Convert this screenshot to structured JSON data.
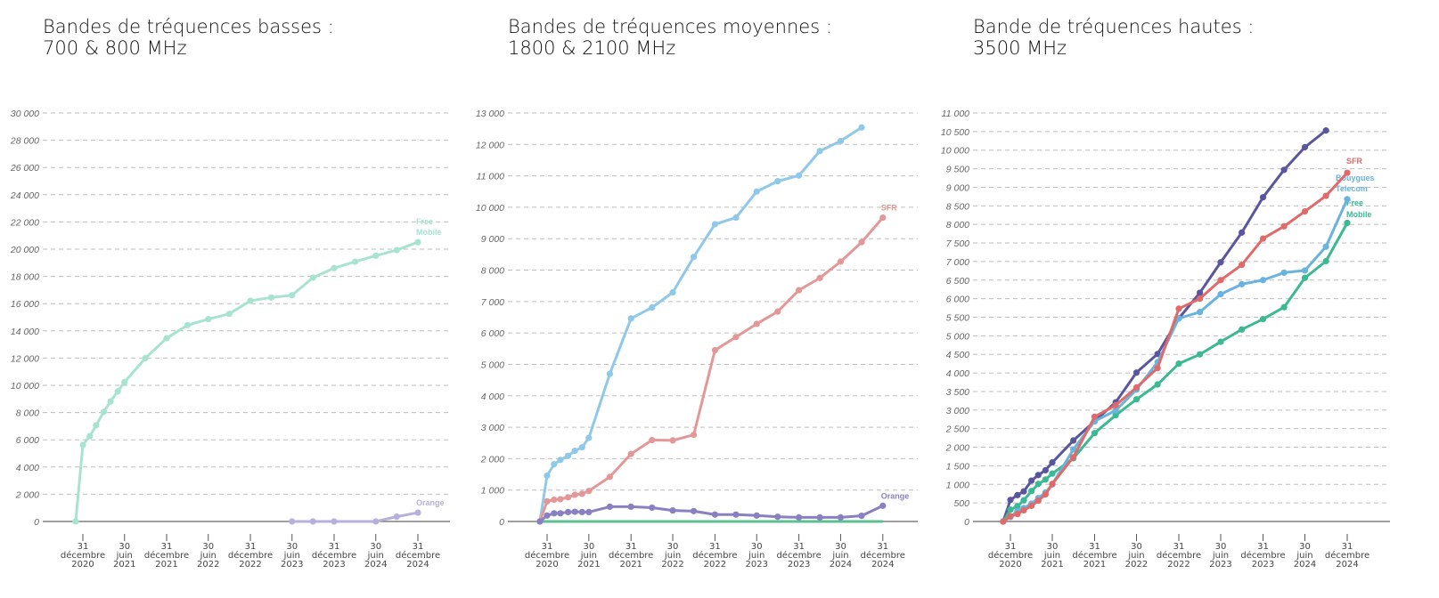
{
  "colors": {
    "free_light": "#a6e3d0",
    "orange_light": "#b7b0db",
    "bouygues_mid": "#8fc8e8",
    "sfr_mid": "#e49797",
    "orange_mid": "#8880c0",
    "free_mid": "#5bbf8f",
    "orange_dark": "#5a559f",
    "sfr_dark": "#e06a6a",
    "bouygues_dark": "#69b3df",
    "free_dark": "#3bb993",
    "grid": "#bdbdbd",
    "axis": "#666666"
  },
  "x_dates": [
    "2020-11-30",
    "2020-12-31",
    "2021-01-31",
    "2021-02-28",
    "2021-03-31",
    "2021-04-30",
    "2021-05-31",
    "2021-06-30",
    "2021-09-30",
    "2021-12-31",
    "2022-03-31",
    "2022-06-30",
    "2022-09-30",
    "2022-12-31",
    "2023-03-31",
    "2023-06-30",
    "2023-09-30",
    "2023-12-31",
    "2024-03-31",
    "2024-06-30",
    "2024-09-30",
    "2024-12-31"
  ],
  "x_ticks": [
    {
      "date": "2020-12-31",
      "lines": [
        "31",
        "décembre",
        "2020"
      ]
    },
    {
      "date": "2021-06-30",
      "lines": [
        "30",
        "juin",
        "2021"
      ]
    },
    {
      "date": "2021-12-31",
      "lines": [
        "31",
        "décembre",
        "2021"
      ]
    },
    {
      "date": "2022-06-30",
      "lines": [
        "30",
        "juin",
        "2022"
      ]
    },
    {
      "date": "2022-12-31",
      "lines": [
        "31",
        "décembre",
        "2022"
      ]
    },
    {
      "date": "2023-06-30",
      "lines": [
        "30",
        "juin",
        "2023"
      ]
    },
    {
      "date": "2023-12-31",
      "lines": [
        "31",
        "décembre",
        "2023"
      ]
    },
    {
      "date": "2024-06-30",
      "lines": [
        "30",
        "juin",
        "2024"
      ]
    },
    {
      "date": "2024-12-31",
      "lines": [
        "31",
        "décembre",
        "2024"
      ]
    }
  ],
  "chart_data": [
    {
      "type": "line",
      "title": [
        "Bandes de tréquences basses :",
        "700 & 800 MHz"
      ],
      "ylim": [
        0,
        30000
      ],
      "grid": true,
      "legend": "end-of-line labels",
      "y_ticks": [
        [
          0,
          "0"
        ],
        [
          2000,
          "2 000"
        ],
        [
          4000,
          "4 000"
        ],
        [
          6000,
          "6 000"
        ],
        [
          8000,
          "8 000"
        ],
        [
          10000,
          "10 000"
        ],
        [
          12000,
          "12 000"
        ],
        [
          14000,
          "14 000"
        ],
        [
          16000,
          "16 000"
        ],
        [
          18000,
          "18 000"
        ],
        [
          20000,
          "20 000"
        ],
        [
          22000,
          "22 000"
        ],
        [
          24000,
          "24 000"
        ],
        [
          26000,
          "26 000"
        ],
        [
          28000,
          "28 000"
        ],
        [
          30000,
          "30 000"
        ]
      ],
      "series": [
        {
          "name": "Free Mobile",
          "label_lines": [
            "Free",
            "Mobile"
          ],
          "color": "free_light",
          "markers": true,
          "values": [
            0,
            5620,
            6270,
            7060,
            8060,
            8820,
            9560,
            10240,
            12000,
            13460,
            14420,
            14860,
            15250,
            16210,
            16450,
            16620,
            17910,
            18610,
            19080,
            19520,
            19930,
            20520
          ]
        },
        {
          "name": "Orange",
          "label_lines": [
            "Orange"
          ],
          "color": "orange_light",
          "markers": true,
          "values": [
            null,
            null,
            null,
            null,
            null,
            null,
            null,
            null,
            null,
            null,
            null,
            null,
            null,
            null,
            null,
            0,
            0,
            0,
            null,
            0,
            350,
            650
          ]
        }
      ]
    },
    {
      "type": "line",
      "title": [
        "Bandes de tréquences moyennes :",
        "1800 & 2100 MHz"
      ],
      "ylim": [
        0,
        13000
      ],
      "grid": true,
      "legend": "end-of-line labels",
      "y_ticks": [
        [
          0,
          "0"
        ],
        [
          1000,
          "1 000"
        ],
        [
          2000,
          "2 000"
        ],
        [
          3000,
          "3 000"
        ],
        [
          4000,
          "4 000"
        ],
        [
          5000,
          "5 000"
        ],
        [
          6000,
          "6 000"
        ],
        [
          7000,
          "7 000"
        ],
        [
          8000,
          "8 000"
        ],
        [
          9000,
          "9 000"
        ],
        [
          10000,
          "10 000"
        ],
        [
          11000,
          "11 000"
        ],
        [
          12000,
          "12 000"
        ],
        [
          13000,
          "13 000"
        ]
      ],
      "series": [
        {
          "color": "free_mid",
          "markers": false,
          "values": [
            0,
            0,
            0,
            0,
            0,
            0,
            0,
            0,
            0,
            0,
            0,
            0,
            0,
            0,
            0,
            0,
            0,
            0,
            0,
            0,
            0,
            0
          ]
        },
        {
          "color": "bouygues_mid",
          "markers": true,
          "values": [
            0,
            1460,
            1820,
            1960,
            2090,
            2250,
            2360,
            2660,
            4700,
            6460,
            6810,
            7290,
            8420,
            9460,
            9670,
            10500,
            10830,
            11010,
            11790,
            12110,
            12540,
            null
          ]
        },
        {
          "name": "SFR",
          "label_lines": [
            "SFR"
          ],
          "color": "sfr_mid",
          "markers": true,
          "values": [
            0,
            640,
            690,
            710,
            770,
            850,
            880,
            970,
            1420,
            2150,
            2590,
            2580,
            2760,
            5450,
            5870,
            6290,
            6680,
            7360,
            7750,
            8270,
            8890,
            9670
          ]
        },
        {
          "name": "Orange",
          "label_lines": [
            "Orange"
          ],
          "color": "orange_mid",
          "markers": true,
          "values": [
            0,
            190,
            260,
            260,
            300,
            310,
            300,
            300,
            470,
            470,
            440,
            350,
            330,
            220,
            220,
            190,
            150,
            130,
            130,
            130,
            180,
            500
          ]
        }
      ]
    },
    {
      "type": "line",
      "title": [
        "Bande de tréquences hautes :",
        "3500 MHz"
      ],
      "ylim": [
        0,
        11000
      ],
      "grid": true,
      "legend": "end-of-line labels",
      "y_ticks": [
        [
          0,
          "0"
        ],
        [
          500,
          "500"
        ],
        [
          1000,
          "1 000"
        ],
        [
          1500,
          "1 500"
        ],
        [
          2000,
          "2 000"
        ],
        [
          2500,
          "2 500"
        ],
        [
          3000,
          "3 000"
        ],
        [
          3500,
          "3 500"
        ],
        [
          4000,
          "4 000"
        ],
        [
          4500,
          "4 500"
        ],
        [
          5000,
          "5 000"
        ],
        [
          5500,
          "5 500"
        ],
        [
          6000,
          "6 000"
        ],
        [
          6500,
          "6 500"
        ],
        [
          7000,
          "7 000"
        ],
        [
          7500,
          "7 500"
        ],
        [
          8000,
          "8 000"
        ],
        [
          8500,
          "8 500"
        ],
        [
          9000,
          "9 000"
        ],
        [
          9500,
          "9 500"
        ],
        [
          10000,
          "10 000"
        ],
        [
          10500,
          "10 500"
        ],
        [
          11000,
          "11 000"
        ]
      ],
      "series": [
        {
          "color": "orange_dark",
          "markers": true,
          "values": [
            0,
            580,
            710,
            810,
            1100,
            1250,
            1380,
            1590,
            2180,
            2700,
            3210,
            4010,
            4510,
            5470,
            6160,
            6980,
            7780,
            8730,
            9470,
            10080,
            10530,
            null
          ]
        },
        {
          "color": "free_dark",
          "markers": true,
          "name": "Free Mobile",
          "label_lines": [
            "Free",
            "Mobile"
          ],
          "values": [
            0,
            320,
            410,
            570,
            820,
            1010,
            1130,
            1290,
            1700,
            2380,
            2860,
            3290,
            3690,
            4250,
            4500,
            4840,
            5170,
            5450,
            5770,
            6560,
            7010,
            8040
          ]
        },
        {
          "color": "bouygues_dark",
          "markers": true,
          "name": "Bouygues Telecom",
          "label_lines": [
            "Bouygues",
            "Telecom"
          ],
          "values": [
            0,
            120,
            280,
            360,
            480,
            630,
            780,
            1000,
            1940,
            2700,
            2990,
            3550,
            4290,
            5470,
            5640,
            6120,
            6390,
            6500,
            6700,
            6760,
            7400,
            8680
          ]
        },
        {
          "color": "sfr_dark",
          "markers": true,
          "name": "SFR",
          "label_lines": [
            "SFR"
          ],
          "values": [
            0,
            140,
            200,
            300,
            420,
            560,
            730,
            1010,
            1730,
            2820,
            3130,
            3610,
            4130,
            5730,
            6000,
            6500,
            6910,
            7620,
            7950,
            8350,
            8770,
            9390
          ]
        }
      ]
    }
  ]
}
